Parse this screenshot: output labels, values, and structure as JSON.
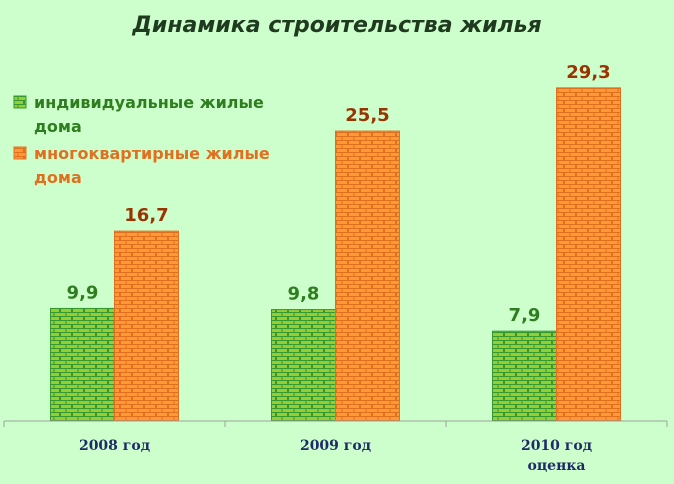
{
  "chart_data": {
    "type": "bar",
    "title": "Динамика строительства жилья",
    "categories": [
      [
        "2008 год"
      ],
      [
        "2009 год"
      ],
      [
        "2010 год",
        "оценка"
      ]
    ],
    "series": [
      {
        "name": [
          "индивидуальные жилые",
          "дома"
        ],
        "values": [
          9.9,
          9.8,
          7.9
        ],
        "labels": [
          "9,9",
          "9,8",
          "7,9"
        ],
        "color": "#339933",
        "fill": "#99cc33",
        "label_color": "#2e7d1e"
      },
      {
        "name": [
          "многоквартирные жилые",
          "дома"
        ],
        "values": [
          16.7,
          25.5,
          29.3
        ],
        "labels": [
          "16,7",
          "25,5",
          "29,3"
        ],
        "color": "#e07020",
        "fill": "#ff9933",
        "label_color": "#993300"
      }
    ],
    "ylim": [
      0,
      30
    ],
    "grid": false,
    "legend": "top-left",
    "pattern": "brick"
  }
}
